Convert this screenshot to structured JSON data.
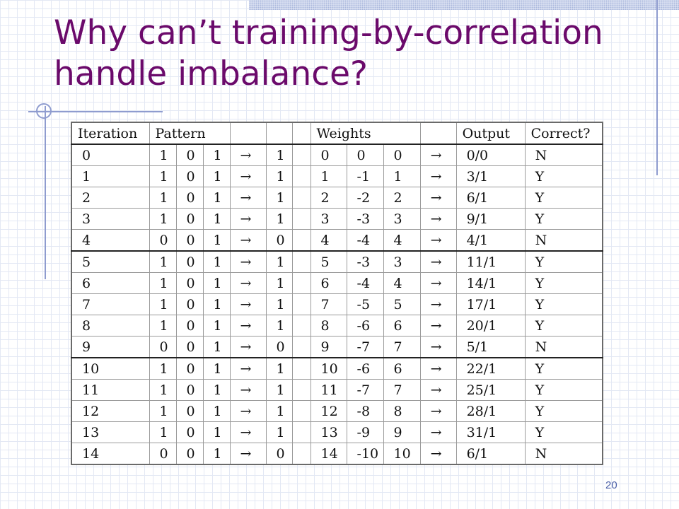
{
  "slide": {
    "title": "Why can’t training-by-correlation handle imbalance?",
    "page_number": "20"
  },
  "table": {
    "headers": [
      "Iteration",
      "Pattern",
      "",
      "",
      "",
      "",
      "",
      "Weights",
      "",
      "",
      "",
      "Output",
      "Correct?"
    ],
    "rows": [
      [
        "0",
        "1",
        "0",
        "1",
        "→",
        "1",
        "",
        "0",
        "0",
        "0",
        "→",
        "0/0",
        "N"
      ],
      [
        "1",
        "1",
        "0",
        "1",
        "→",
        "1",
        "",
        "1",
        "-1",
        "1",
        "→",
        "3/1",
        "Y"
      ],
      [
        "2",
        "1",
        "0",
        "1",
        "→",
        "1",
        "",
        "2",
        "-2",
        "2",
        "→",
        "6/1",
        "Y"
      ],
      [
        "3",
        "1",
        "0",
        "1",
        "→",
        "1",
        "",
        "3",
        "-3",
        "3",
        "→",
        "9/1",
        "Y"
      ],
      [
        "4",
        "0",
        "0",
        "1",
        "→",
        "0",
        "",
        "4",
        "-4",
        "4",
        "→",
        "4/1",
        "N"
      ],
      [
        "5",
        "1",
        "0",
        "1",
        "→",
        "1",
        "",
        "5",
        "-3",
        "3",
        "→",
        "11/1",
        "Y"
      ],
      [
        "6",
        "1",
        "0",
        "1",
        "→",
        "1",
        "",
        "6",
        "-4",
        "4",
        "→",
        "14/1",
        "Y"
      ],
      [
        "7",
        "1",
        "0",
        "1",
        "→",
        "1",
        "",
        "7",
        "-5",
        "5",
        "→",
        "17/1",
        "Y"
      ],
      [
        "8",
        "1",
        "0",
        "1",
        "→",
        "1",
        "",
        "8",
        "-6",
        "6",
        "→",
        "20/1",
        "Y"
      ],
      [
        "9",
        "0",
        "0",
        "1",
        "→",
        "0",
        "",
        "9",
        "-7",
        "7",
        "→",
        "5/1",
        "N"
      ],
      [
        "10",
        "1",
        "0",
        "1",
        "→",
        "1",
        "",
        "10",
        "-6",
        "6",
        "→",
        "22/1",
        "Y"
      ],
      [
        "11",
        "1",
        "0",
        "1",
        "→",
        "1",
        "",
        "11",
        "-7",
        "7",
        "→",
        "25/1",
        "Y"
      ],
      [
        "12",
        "1",
        "0",
        "1",
        "→",
        "1",
        "",
        "12",
        "-8",
        "8",
        "→",
        "28/1",
        "Y"
      ],
      [
        "13",
        "1",
        "0",
        "1",
        "→",
        "1",
        "",
        "13",
        "-9",
        "9",
        "→",
        "31/1",
        "Y"
      ],
      [
        "14",
        "0",
        "0",
        "1",
        "→",
        "0",
        "",
        "14",
        "-10",
        "10",
        "→",
        "6/1",
        "N"
      ]
    ]
  }
}
